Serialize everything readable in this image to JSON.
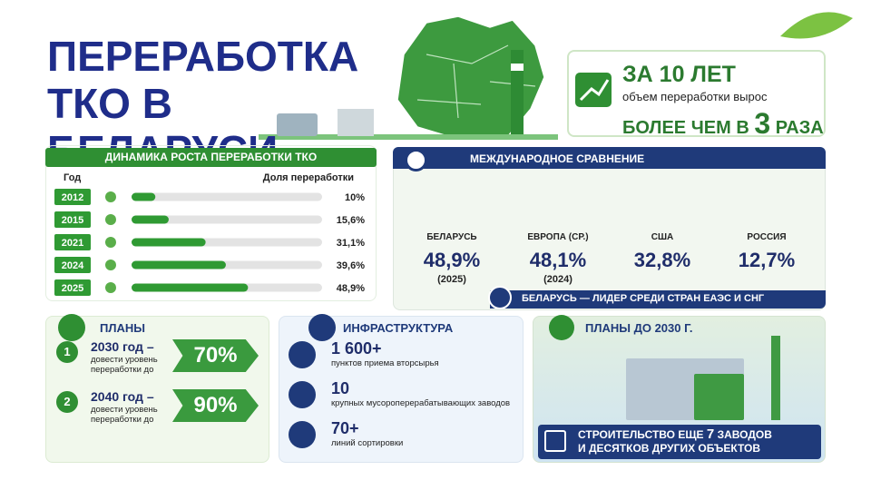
{
  "header": {
    "title": "ПЕРЕРАБОТКА ТКО В БЕЛАРУСИ"
  },
  "highlight": {
    "period": "ЗА 10 ЛЕТ",
    "subtitle": "объем переработки вырос",
    "prefix": "БОЛЕЕ ЧЕМ В",
    "factor": "3",
    "suffix": "РАЗА"
  },
  "chart_data": {
    "type": "bar",
    "title": "ДИНАМИКА РОСТА ПЕРЕРАБОТКИ ТКО",
    "category_label": "Год",
    "value_label": "Доля переработки",
    "categories": [
      "2012",
      "2015",
      "2021",
      "2024",
      "2025"
    ],
    "values": [
      10,
      15.6,
      31.1,
      39.6,
      48.9
    ],
    "value_labels": [
      "10%",
      "15,6%",
      "31,1%",
      "39,6%",
      "48,9%"
    ],
    "xlim": [
      0,
      80
    ],
    "color": "#2f9a33"
  },
  "comparison": {
    "title": "МЕЖДУНАРОДНОЕ СРАВНЕНИЕ",
    "countries": [
      {
        "name": "БЕЛАРУСЬ",
        "value": "48,9%",
        "year": "(2025)"
      },
      {
        "name": "ЕВРОПА (СР.)",
        "value": "48,1%",
        "year": "(2024)"
      },
      {
        "name": "США",
        "value": "32,8%"
      },
      {
        "name": "РОССИЯ",
        "value": "12,7%"
      }
    ],
    "footer": "БЕЛАРУСЬ — ЛИДЕР СРЕДИ СТРАН ЕАЭС И СНГ"
  },
  "plans": {
    "title": "ПЛАНЫ",
    "items": [
      {
        "number": "1",
        "year": "2030 год –",
        "text": "довести уровень переработки до",
        "target": "70%"
      },
      {
        "number": "2",
        "year": "2040 год –",
        "text": "довести уровень переработки до",
        "target": "90%"
      }
    ]
  },
  "infrastructure": {
    "title": "ИНФРАСТРУКТУРА",
    "items": [
      {
        "value": "1 600+",
        "text": "пунктов приема вторсырья"
      },
      {
        "value": "10",
        "text": "крупных мусороперерабатывающих заводов"
      },
      {
        "value": "70+",
        "text": "линий сортировки"
      }
    ]
  },
  "plans_2030": {
    "title": "ПЛАНЫ ДО 2030 Г.",
    "line1": "СТРОИТЕЛЬСТВО ЕЩЕ",
    "number": "7",
    "line1_end": "ЗАВОДОВ",
    "line2": "И ДЕСЯТКОВ ДРУГИХ ОБЪЕКТОВ"
  }
}
